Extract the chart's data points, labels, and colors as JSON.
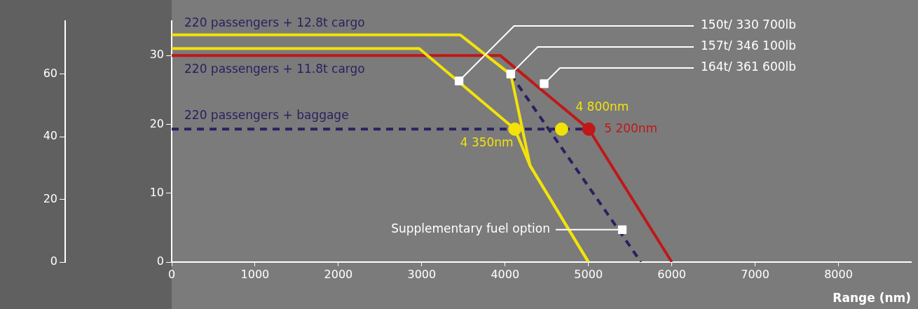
{
  "chart_data": {
    "type": "line",
    "xlabel": "Range (nm)",
    "xlim": [
      0,
      8870
    ],
    "xticks": [
      0,
      1000,
      2000,
      3000,
      4000,
      5000,
      6000,
      7000,
      8000
    ],
    "ylim": [
      0,
      35
    ],
    "yticks": [
      0,
      10,
      20,
      30
    ],
    "y2lim": [
      0,
      77
    ],
    "y2ticks": [
      0,
      20,
      40,
      60
    ],
    "grid": false,
    "legend": false,
    "series": [
      {
        "color": "#f2e20a",
        "marker": "none",
        "line_style": "solid",
        "x": [
          0,
          3460,
          4070,
          4300,
          5000
        ],
        "values": [
          33,
          33,
          27.2,
          14,
          0
        ]
      },
      {
        "color": "#f2e20a",
        "marker": "none",
        "line_style": "solid",
        "x": [
          0,
          2970,
          4117,
          4300,
          5000
        ],
        "values": [
          31,
          31,
          19.3,
          14,
          0
        ]
      },
      {
        "color": "#c01818",
        "marker": "none",
        "line_style": "solid",
        "x": [
          0,
          3941,
          5004,
          6000
        ],
        "values": [
          30,
          30,
          19.3,
          0
        ]
      },
      {
        "color": "#2a2060",
        "marker": "none",
        "line_style": "dashed",
        "x": [
          0,
          5004
        ],
        "values": [
          19.3,
          19.3
        ]
      },
      {
        "color": "#2a2060",
        "marker": "none",
        "line_style": "dashed",
        "x": [
          4070,
          5630
        ],
        "values": [
          27.2,
          0
        ]
      },
      {
        "type": "scatter",
        "marker": "circle",
        "colors": [
          "#f2e20a",
          "#f2e20a",
          "#c01818"
        ],
        "x": [
          4117,
          4678,
          5004
        ],
        "values": [
          19.3,
          19.3,
          19.3
        ]
      },
      {
        "type": "scatter",
        "marker": "square",
        "color": "#ffffff",
        "x": [
          3448,
          4067,
          4469,
          5406
        ],
        "values": [
          26.3,
          27.3,
          25.9,
          4.7
        ]
      }
    ],
    "annotations": [
      "220 passengers + 12.8t cargo",
      "220 passengers + 11.8t cargo",
      "220 passengers + baggage",
      {
        "text": "4 350nm",
        "x": 4117,
        "y": 19.3
      },
      {
        "text": "4 800nm",
        "x": 4678,
        "y": 19.3
      },
      {
        "text": "5 200nm",
        "x": 5004,
        "y": 19.3
      },
      {
        "text": "150t/ 330 700lb",
        "x": 3448,
        "y": 26.3
      },
      {
        "text": "157t/ 346 100lb",
        "x": 4067,
        "y": 27.3
      },
      {
        "text": "164t/ 361 600lb",
        "x": 4469,
        "y": 25.9
      },
      {
        "text": "Supplementary fuel option",
        "x": 5406,
        "y": 4.7
      }
    ]
  }
}
